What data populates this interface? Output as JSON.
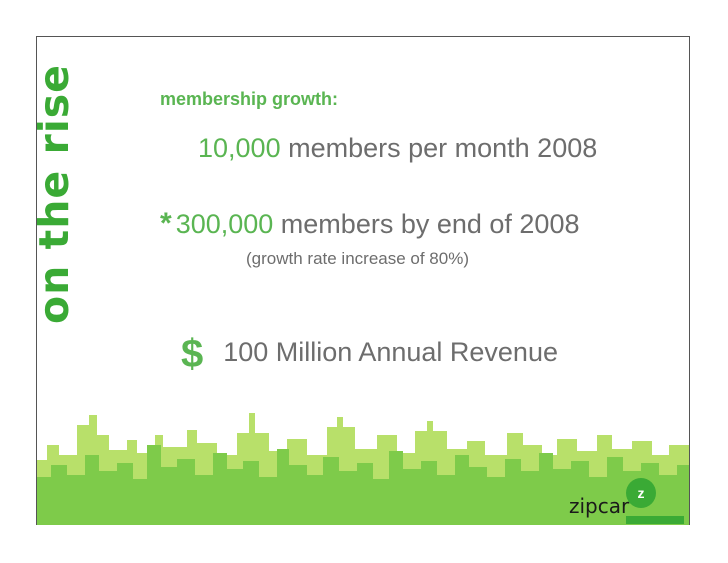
{
  "side_title": "on the rise",
  "heading": "membership growth:",
  "line1": {
    "value": "10,000",
    "text": " members per month 2008"
  },
  "line2": {
    "bullet": "*",
    "value": "300,000",
    "text": " members by end of 2008"
  },
  "line2_sub": "(growth rate increase of 80%)",
  "line3": {
    "symbol": "$",
    "text": "100 Million Annual Revenue"
  },
  "logo": {
    "word": "zipcar",
    "badge": "z"
  },
  "colors": {
    "accent": "#5ab552",
    "title": "#3aaa35",
    "body": "#6d6d6d",
    "skyline_dark": "#7ecb4a",
    "skyline_light": "#b8e06a"
  }
}
